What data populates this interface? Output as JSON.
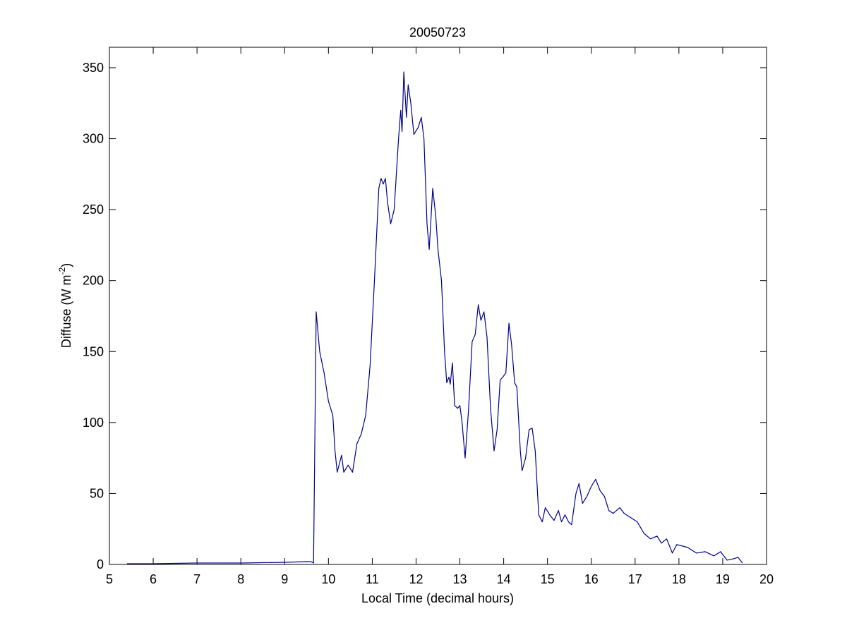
{
  "chart_data": {
    "type": "line",
    "title": "20050723",
    "xlabel": "Local Time (decimal hours)",
    "ylabel": [
      "Diffuse (W m",
      "-2",
      ")"
    ],
    "xlim": [
      5,
      20
    ],
    "ylim": [
      0,
      364.4
    ],
    "xticks": [
      5,
      6,
      7,
      8,
      9,
      10,
      11,
      12,
      13,
      14,
      15,
      16,
      17,
      18,
      19,
      20
    ],
    "yticks": [
      0,
      50,
      100,
      150,
      200,
      250,
      300,
      350
    ],
    "grid": false,
    "series": [
      {
        "color": "#00008b",
        "x": [
          5.4,
          6,
          7,
          8,
          9,
          9.5,
          9.6,
          9.66,
          9.72,
          9.8,
          9.9,
          10.0,
          10.1,
          10.15,
          10.2,
          10.3,
          10.35,
          10.45,
          10.55,
          10.65,
          10.75,
          10.85,
          10.95,
          11.05,
          11.15,
          11.2,
          11.25,
          11.3,
          11.35,
          11.42,
          11.5,
          11.6,
          11.65,
          11.68,
          11.72,
          11.78,
          11.82,
          11.88,
          11.95,
          12.05,
          12.12,
          12.18,
          12.25,
          12.3,
          12.38,
          12.45,
          12.5,
          12.58,
          12.65,
          12.7,
          12.75,
          12.78,
          12.83,
          12.88,
          12.95,
          13.0,
          13.05,
          13.12,
          13.2,
          13.28,
          13.35,
          13.42,
          13.48,
          13.55,
          13.62,
          13.7,
          13.78,
          13.85,
          13.92,
          13.98,
          14.05,
          14.12,
          14.18,
          14.25,
          14.3,
          14.38,
          14.42,
          14.5,
          14.58,
          14.65,
          14.72,
          14.8,
          14.88,
          14.95,
          15.05,
          15.15,
          15.25,
          15.32,
          15.4,
          15.48,
          15.55,
          15.65,
          15.72,
          15.8,
          15.9,
          16.0,
          16.1,
          16.2,
          16.3,
          16.4,
          16.5,
          16.65,
          16.75,
          16.9,
          17.05,
          17.2,
          17.35,
          17.5,
          17.6,
          17.72,
          17.85,
          17.95,
          18.2,
          18.4,
          18.6,
          18.8,
          18.95,
          19.1,
          19.25,
          19.35,
          19.45
        ],
        "values": [
          0.5,
          0.5,
          1,
          1,
          1.5,
          2,
          2,
          1,
          178,
          150,
          135,
          115,
          105,
          80,
          65,
          77,
          65,
          70,
          65,
          85,
          92,
          105,
          140,
          200,
          265,
          272,
          268,
          272,
          255,
          240,
          250,
          300,
          320,
          305,
          347,
          315,
          338,
          325,
          303,
          308,
          315,
          300,
          240,
          222,
          265,
          245,
          222,
          200,
          150,
          128,
          132,
          127,
          142,
          112,
          110,
          112,
          100,
          75,
          110,
          157,
          162,
          183,
          172,
          178,
          160,
          110,
          80,
          95,
          130,
          132,
          135,
          170,
          155,
          128,
          125,
          80,
          66,
          75,
          95,
          96,
          80,
          35,
          30,
          40,
          35,
          31,
          38,
          30,
          35,
          30,
          28,
          50,
          57,
          43,
          48,
          55,
          60,
          52,
          48,
          38,
          36,
          40,
          36,
          33,
          30,
          22,
          18,
          20,
          15,
          18,
          8,
          14,
          12,
          8,
          9,
          6,
          9,
          3,
          4,
          5,
          1
        ]
      }
    ]
  }
}
